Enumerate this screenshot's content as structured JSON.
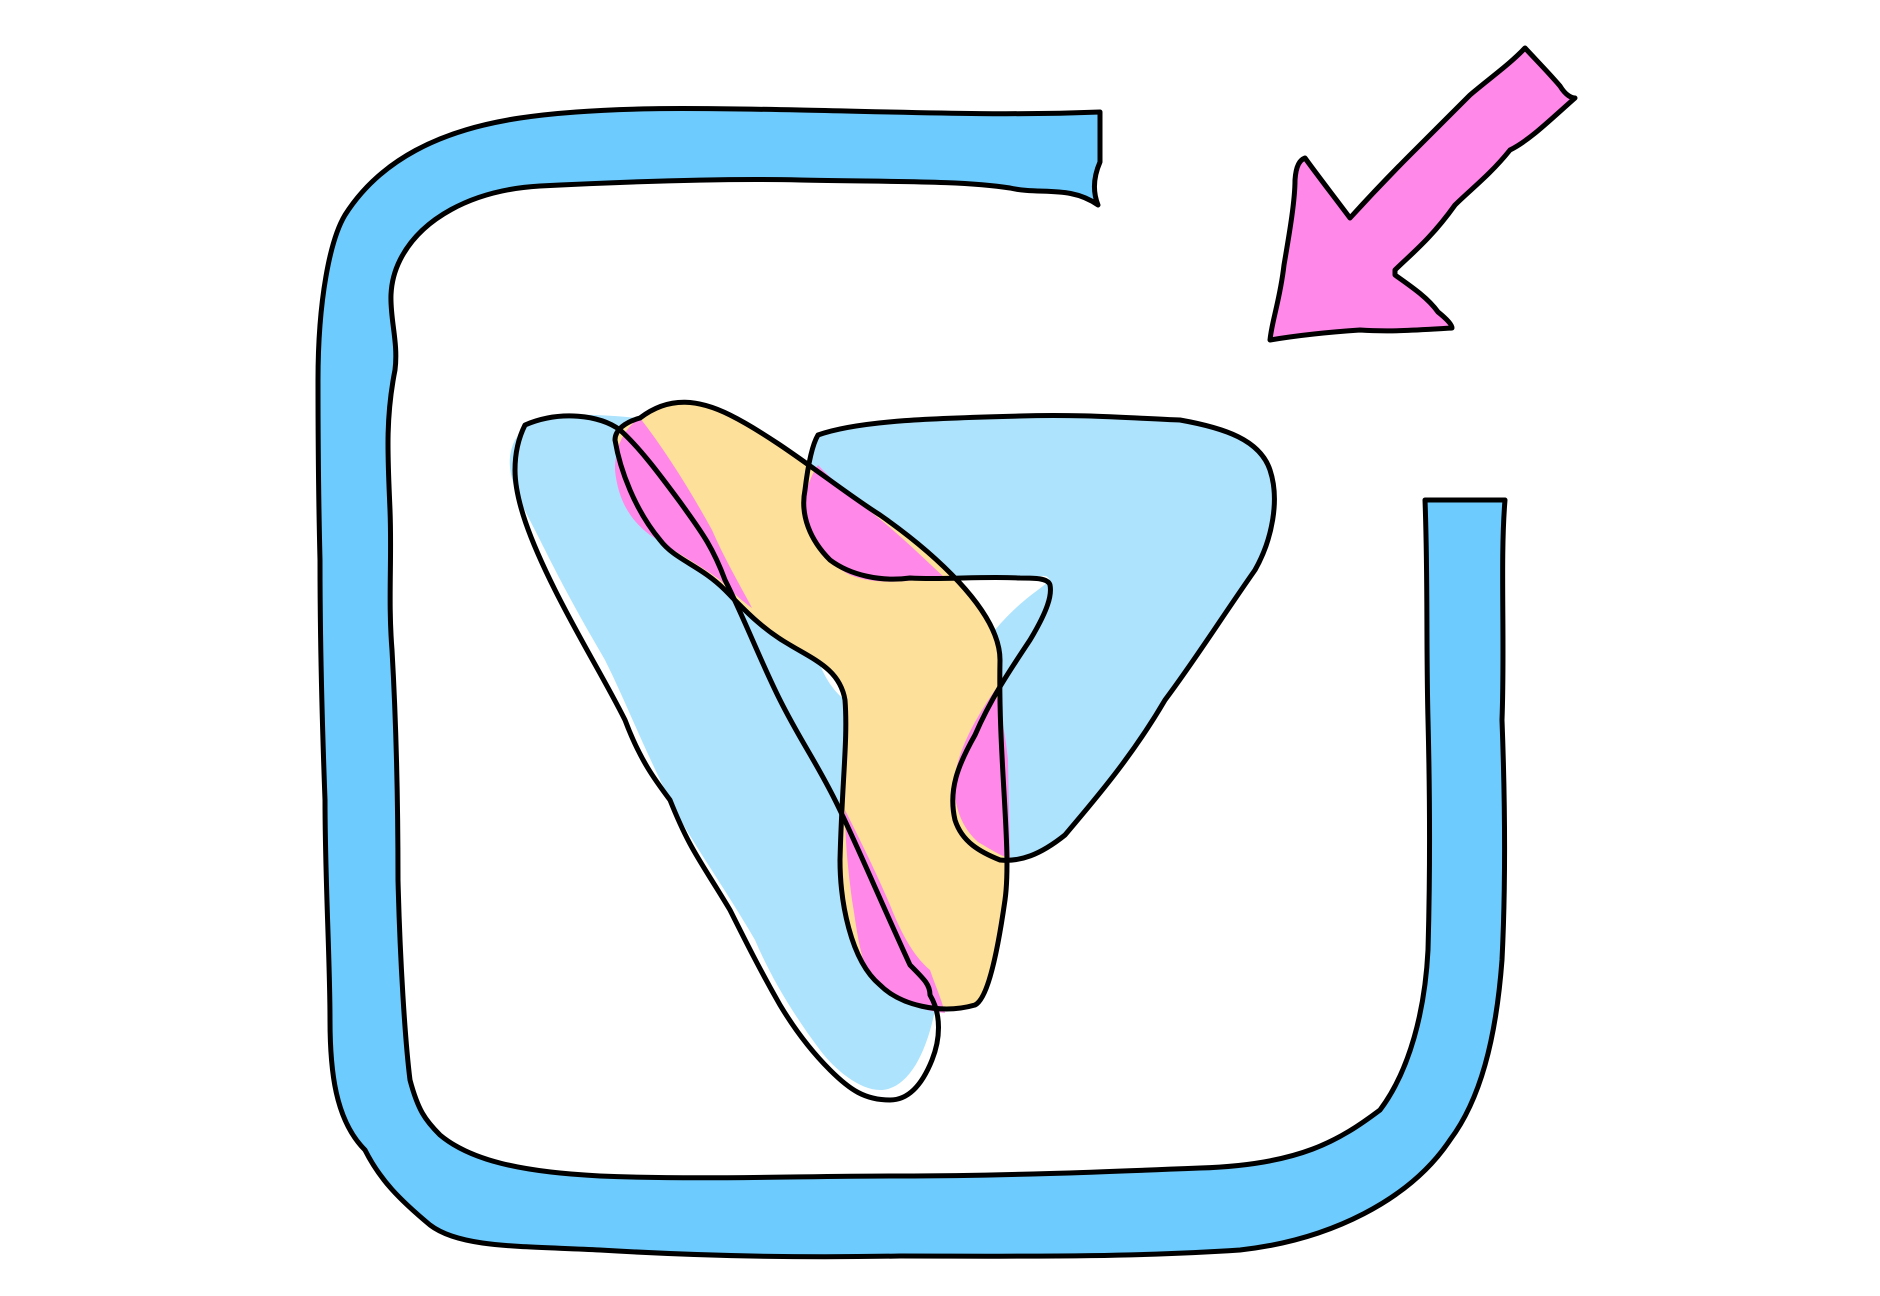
{
  "illustration": {
    "kind": "import-icon",
    "frame_icon": "square-frame-with-gap",
    "arrow_icon": "arrow-down-left-icon",
    "shape_icon": "overlapping-blobs",
    "colors": {
      "background": "#ffffff",
      "frame": "#6ecbfd",
      "arrow": "#ff88e8",
      "blob_back": "#ade3fc",
      "blob_middle": "#fde09a",
      "overlap": "#ff88e8",
      "outline": "#000000"
    }
  }
}
